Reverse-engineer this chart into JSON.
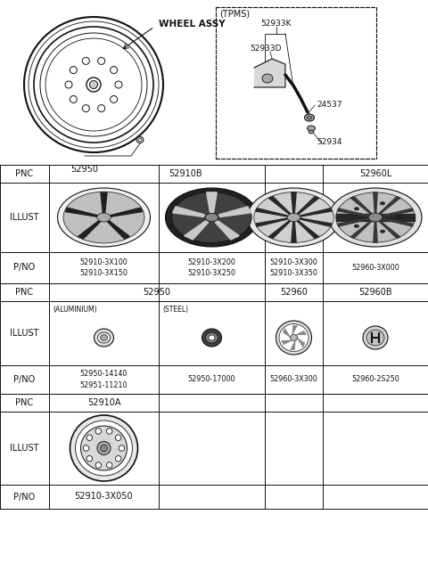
{
  "title": "52910-3X050",
  "bg_color": "#ffffff",
  "border_color": "#000000",
  "fig_width": 4.8,
  "fig_height": 6.42,
  "top_label": "WHEEL ASSY",
  "tpms_label": "(TPMS)",
  "part_52950": "52950",
  "part_52933K": "52933K",
  "part_52933D": "52933D",
  "part_24537": "24537",
  "part_52934": "52934"
}
